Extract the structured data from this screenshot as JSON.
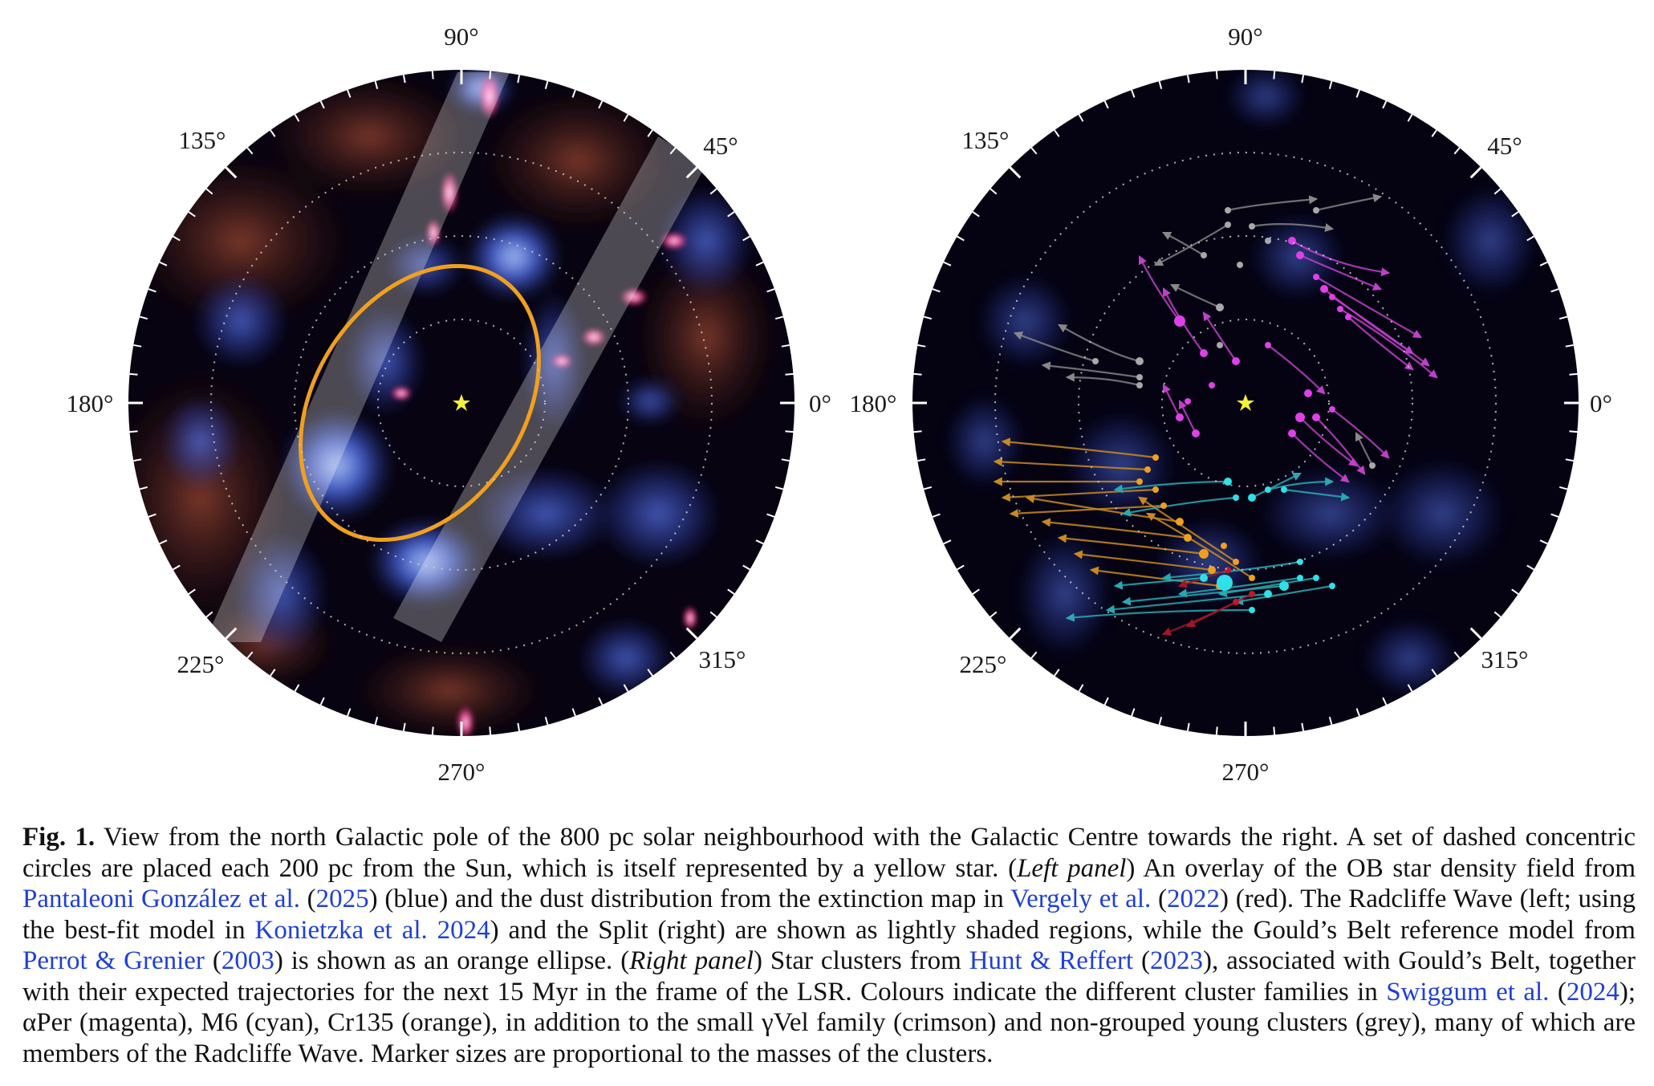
{
  "figure": {
    "angle_labels": [
      "90°",
      "135°",
      "45°",
      "180°",
      "0°",
      "225°",
      "315°",
      "270°"
    ],
    "panels": [
      {
        "name": "left",
        "ring_spacing_pc": 200,
        "extent_pc": 800
      },
      {
        "name": "right",
        "ring_spacing_pc": 200,
        "extent_pc": 800
      }
    ],
    "colors": {
      "ob_density": "#3a5be0",
      "dust": "#c0392b",
      "sun": "#f5f03a",
      "goulds_belt": "#f0a020",
      "alpha_per": "#e040e8",
      "m6": "#30e0e8",
      "cr135": "#f0a020",
      "gamma_vel": "#c0182a",
      "ungrouped": "#9a9a9a"
    }
  },
  "caption": {
    "fig_label": "Fig. 1.",
    "t1": " View from the north Galactic pole of the 800 pc solar neighbourhood with the Galactic Centre towards the right. A set of dashed concentric circles are placed each 200 pc from the Sun, which is itself represented by a yellow star. (",
    "left_panel": "Left panel",
    "t2": ") An overlay of the OB star density field from ",
    "ref1": "Pantaleoni González et al.",
    "t3": " (",
    "ref1_year": "2025",
    "t4": ") (blue) and the dust distribution from the extinction map in ",
    "ref2": "Vergely et al.",
    "t5": " (",
    "ref2_year": "2022",
    "t6": ") (red). The Radcliffe Wave (left; using the best-fit model in ",
    "ref3": "Konietzka et al. 2024",
    "t7": ") and the Split (right) are shown as lightly shaded regions, while the Gould’s Belt reference model from ",
    "ref4": "Perrot & Grenier",
    "t8": " (",
    "ref4_year": "2003",
    "t9": ") is shown as an orange ellipse. (",
    "right_panel": "Right panel",
    "t10": ") Star clusters from ",
    "ref5": "Hunt & Reffert",
    "t11": " (",
    "ref5_year": "2023",
    "t12": "), associated with Gould’s Belt, together with their expected trajectories for the next 15 Myr in the frame of the LSR. Colours indicate the different cluster families in ",
    "ref6": "Swiggum et al.",
    "t13": " (",
    "ref6_year": "2024",
    "t14": "); αPer (magenta), M6 (cyan), Cr135 (orange), in addition to the small γVel family (crimson) and non-grouped young clusters (grey), many of which are members of the Radcliffe Wave. Marker sizes are proportional to the masses of the clusters."
  }
}
